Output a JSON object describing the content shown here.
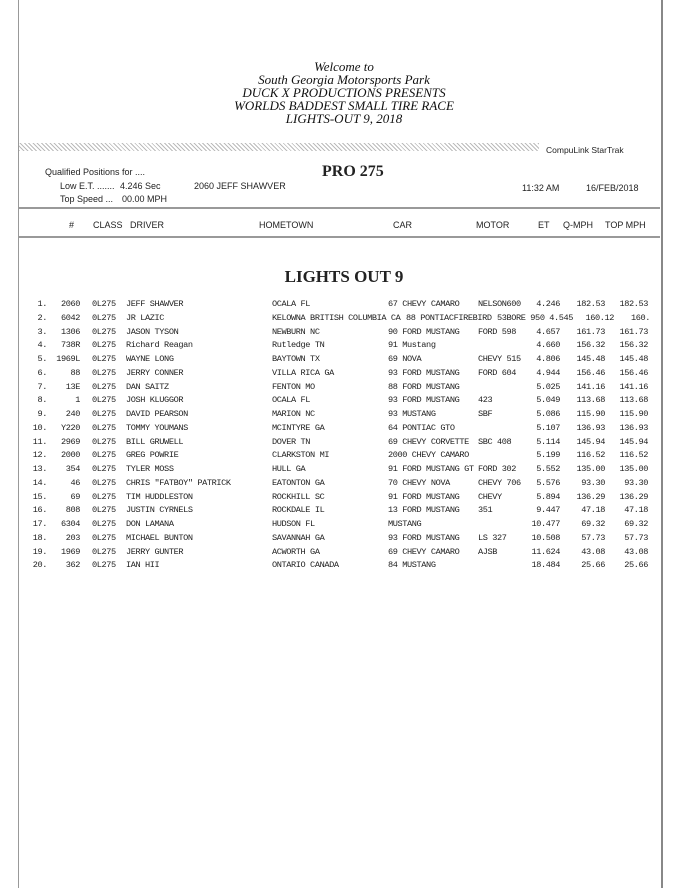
{
  "header": {
    "title_lines": [
      "Welcome to",
      "South Georgia Motorsports Park",
      "DUCK X PRODUCTIONS PRESENTS",
      "WORLDS BADDEST SMALL TIRE RACE",
      "LIGHTS-OUT 9, 2018"
    ],
    "brand": "CompuLink  StarTrak",
    "qualified_label": "Qualified Positions for ....",
    "class_title": "PRO 275",
    "low_et_label": "Low E.T. .......",
    "low_et_value": "4.246 Sec",
    "low_et_driver": "2060  JEFF SHAWVER",
    "top_speed_label": "Top Speed ...",
    "top_speed_value": "00.00 MPH",
    "time": "11:32 AM",
    "date": "16/FEB/2018"
  },
  "columns": [
    "#",
    "CLASS",
    "DRIVER",
    "HOMETOWN",
    "CAR",
    "MOTOR",
    "ET",
    "Q-MPH",
    "TOP MPH"
  ],
  "section_title": "LIGHTS OUT 9",
  "rows": [
    [
      "1.",
      "2060",
      "0L275",
      "JEFF SHAWVER",
      "OCALA FL",
      "67 CHEVY CAMARO",
      "NELSON600",
      "4.246",
      "182.53",
      "182.53"
    ],
    [
      "2.",
      "6042",
      "0L275",
      "JR LAZIC",
      "KELOWNA BRITISH COLUMBIA CA",
      "88 PONTIACFIREBIRD",
      "53BORE 950",
      "4.545",
      "160.12",
      "160."
    ],
    [
      "3.",
      "1306",
      "0L275",
      "JASON TYSON",
      "NEWBURN NC",
      "90 FORD MUSTANG",
      "FORD 598",
      "4.657",
      "161.73",
      "161.73"
    ],
    [
      "4.",
      "738R",
      "0L275",
      "Richard Reagan",
      "Rutledge TN",
      "91 Mustang",
      "",
      "4.660",
      "156.32",
      "156.32"
    ],
    [
      "5.",
      "1969L",
      "0L275",
      "WAYNE LONG",
      "BAYTOWN TX",
      "69 NOVA",
      "CHEVY 515",
      "4.806",
      "145.48",
      "145.48"
    ],
    [
      "6.",
      "88",
      "0L275",
      "JERRY CONNER",
      "VILLA RICA GA",
      "93 FORD MUSTANG",
      "FORD 604",
      "4.944",
      "156.46",
      "156.46"
    ],
    [
      "7.",
      "13E",
      "0L275",
      "DAN SAITZ",
      "FENTON MO",
      "88 FORD MUSTANG",
      "",
      "5.025",
      "141.16",
      "141.16"
    ],
    [
      "8.",
      "1",
      "0L275",
      "JOSH KLUGGOR",
      "OCALA FL",
      "93 FORD MUSTANG",
      "423",
      "5.049",
      "113.68",
      "113.68"
    ],
    [
      "9.",
      "240",
      "0L275",
      "DAVID PEARSON",
      "MARION NC",
      "93 MUSTANG",
      "SBF",
      "5.086",
      "115.90",
      "115.90"
    ],
    [
      "10.",
      "Y220",
      "0L275",
      "TOMMY YOUMANS",
      "MCINTYRE GA",
      "64 PONTIAC GTO",
      "",
      "5.107",
      "136.93",
      "136.93"
    ],
    [
      "11.",
      "2969",
      "0L275",
      "BILL GRUWELL",
      "DOVER TN",
      "69 CHEVY CORVETTE",
      "SBC 408",
      "5.114",
      "145.94",
      "145.94"
    ],
    [
      "12.",
      "2000",
      "0L275",
      "GREG POWRIE",
      "CLARKSTON MI",
      "2000 CHEVY CAMARO",
      "",
      "5.199",
      "116.52",
      "116.52"
    ],
    [
      "13.",
      "354",
      "0L275",
      "TYLER MOSS",
      "HULL GA",
      "91 FORD MUSTANG GT",
      "FORD 302",
      "5.552",
      "135.00",
      "135.00"
    ],
    [
      "14.",
      "46",
      "0L275",
      "CHRIS \"FATBOY\" PATRICK",
      "EATONTON GA",
      "70 CHEVY NOVA",
      "CHEVY 706",
      "5.576",
      "93.30",
      "93.30"
    ],
    [
      "15.",
      "69",
      "0L275",
      "TIM HUDDLESTON",
      "ROCKHILL SC",
      "91 FORD MUSTANG",
      "CHEVY",
      "5.894",
      "136.29",
      "136.29"
    ],
    [
      "16.",
      "808",
      "0L275",
      "JUSTIN CYRNELS",
      "ROCKDALE IL",
      "13 FORD MUSTANG",
      "351",
      "9.447",
      "47.18",
      "47.18"
    ],
    [
      "17.",
      "6304",
      "0L275",
      "DON LAMANA",
      "HUDSON FL",
      "MUSTANG",
      "",
      "10.477",
      "69.32",
      "69.32"
    ],
    [
      "18.",
      "203",
      "0L275",
      "MICHAEL BUNTON",
      "SAVANNAH GA",
      "93 FORD MUSTANG",
      "LS 327",
      "10.508",
      "57.73",
      "57.73"
    ],
    [
      "19.",
      "1969",
      "0L275",
      "JERRY GUNTER",
      "ACWORTH GA",
      "69 CHEVY CAMARO",
      "AJSB",
      "11.624",
      "43.08",
      "43.08"
    ],
    [
      "20.",
      "362",
      "0L275",
      "IAN HII",
      "ONTARIO CANADA",
      "84 MUSTANG",
      "",
      "18.484",
      "25.66",
      "25.66"
    ]
  ]
}
